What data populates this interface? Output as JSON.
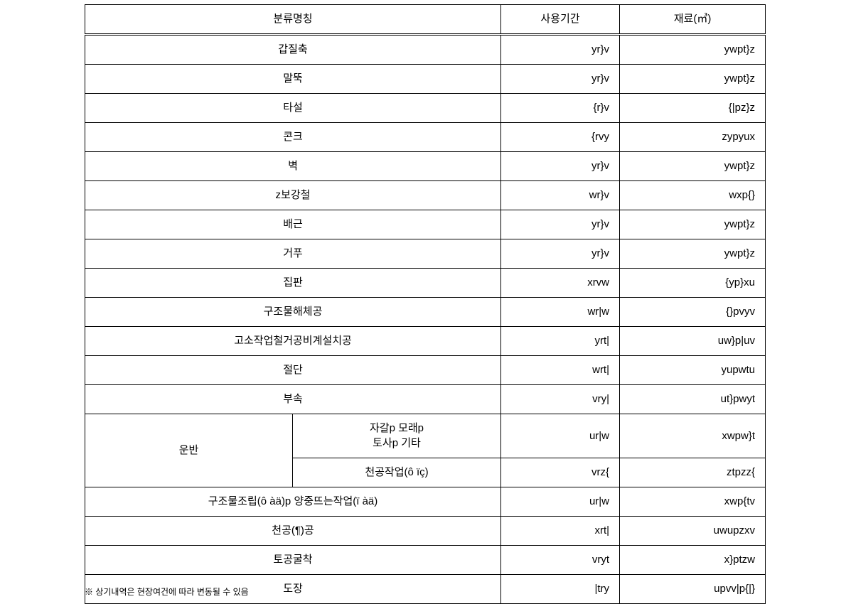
{
  "table": {
    "headers": {
      "c1": "분류명칭",
      "c2": "사용기간",
      "c3": "재료(㎥)"
    },
    "rows": [
      {
        "name": "갑질축",
        "col2": "yr}v",
        "col3": "ywpt}z"
      },
      {
        "name": "말뚝",
        "col2": "yr}v",
        "col3": "ywpt}z"
      },
      {
        "name": "타설",
        "col2": "{r}v",
        "col3": "{|pz}z"
      },
      {
        "name": "콘크",
        "col2": "{rvy",
        "col3": "zypyux"
      },
      {
        "name": "벽",
        "col2": "yr}v",
        "col3": "ywpt}z"
      },
      {
        "name": "z보강철",
        "col2": "wr}v",
        "col3": "wxp{}"
      },
      {
        "name": "배근",
        "col2": "yr}v",
        "col3": "ywpt}z"
      },
      {
        "name": "거푸",
        "col2": "yr}v",
        "col3": "ywpt}z"
      },
      {
        "name": "집판",
        "col2": "xrvw",
        "col3": "{yp}xu"
      },
      {
        "name": "구조물해체공",
        "col2": "wr|w",
        "col3": "{}pvyv"
      },
      {
        "name": "고소작업철거공비계설치공",
        "col2": "yrt|",
        "col3": "uw}p|uv"
      },
      {
        "name": "절단",
        "col2": "wrt|",
        "col3": "yupwtu"
      },
      {
        "name": "부속",
        "col2": "vry|",
        "col3": "ut}pwyt"
      },
      {
        "rowspanName": "운반",
        "sub": [
          {
            "label_l1": "자갈p 모래p",
            "label_l2": "토사p 기타",
            "col2": "ur|w",
            "col3": "xwpw}t"
          },
          {
            "label": "천공작업(ô ïç)",
            "col2": "vrz{",
            "col3": "ztpzz{"
          }
        ]
      },
      {
        "name": "구조물조립(ô àä)p 양중뜨는작업(ï àä)",
        "col2": "ur|w",
        "col3": "xwp{tv"
      },
      {
        "name": "천공(¶)공",
        "col2": "xrt|",
        "col3": "uwupzxv"
      },
      {
        "name": "토공굴착",
        "col2": "vryt",
        "col3": "x}ptzw"
      },
      {
        "name": "도장",
        "col2": "|try",
        "col3": "upvv|p{|}"
      }
    ]
  },
  "footnote": "※ 상기내역은 현장여건에 따라 변동될 수 있음"
}
